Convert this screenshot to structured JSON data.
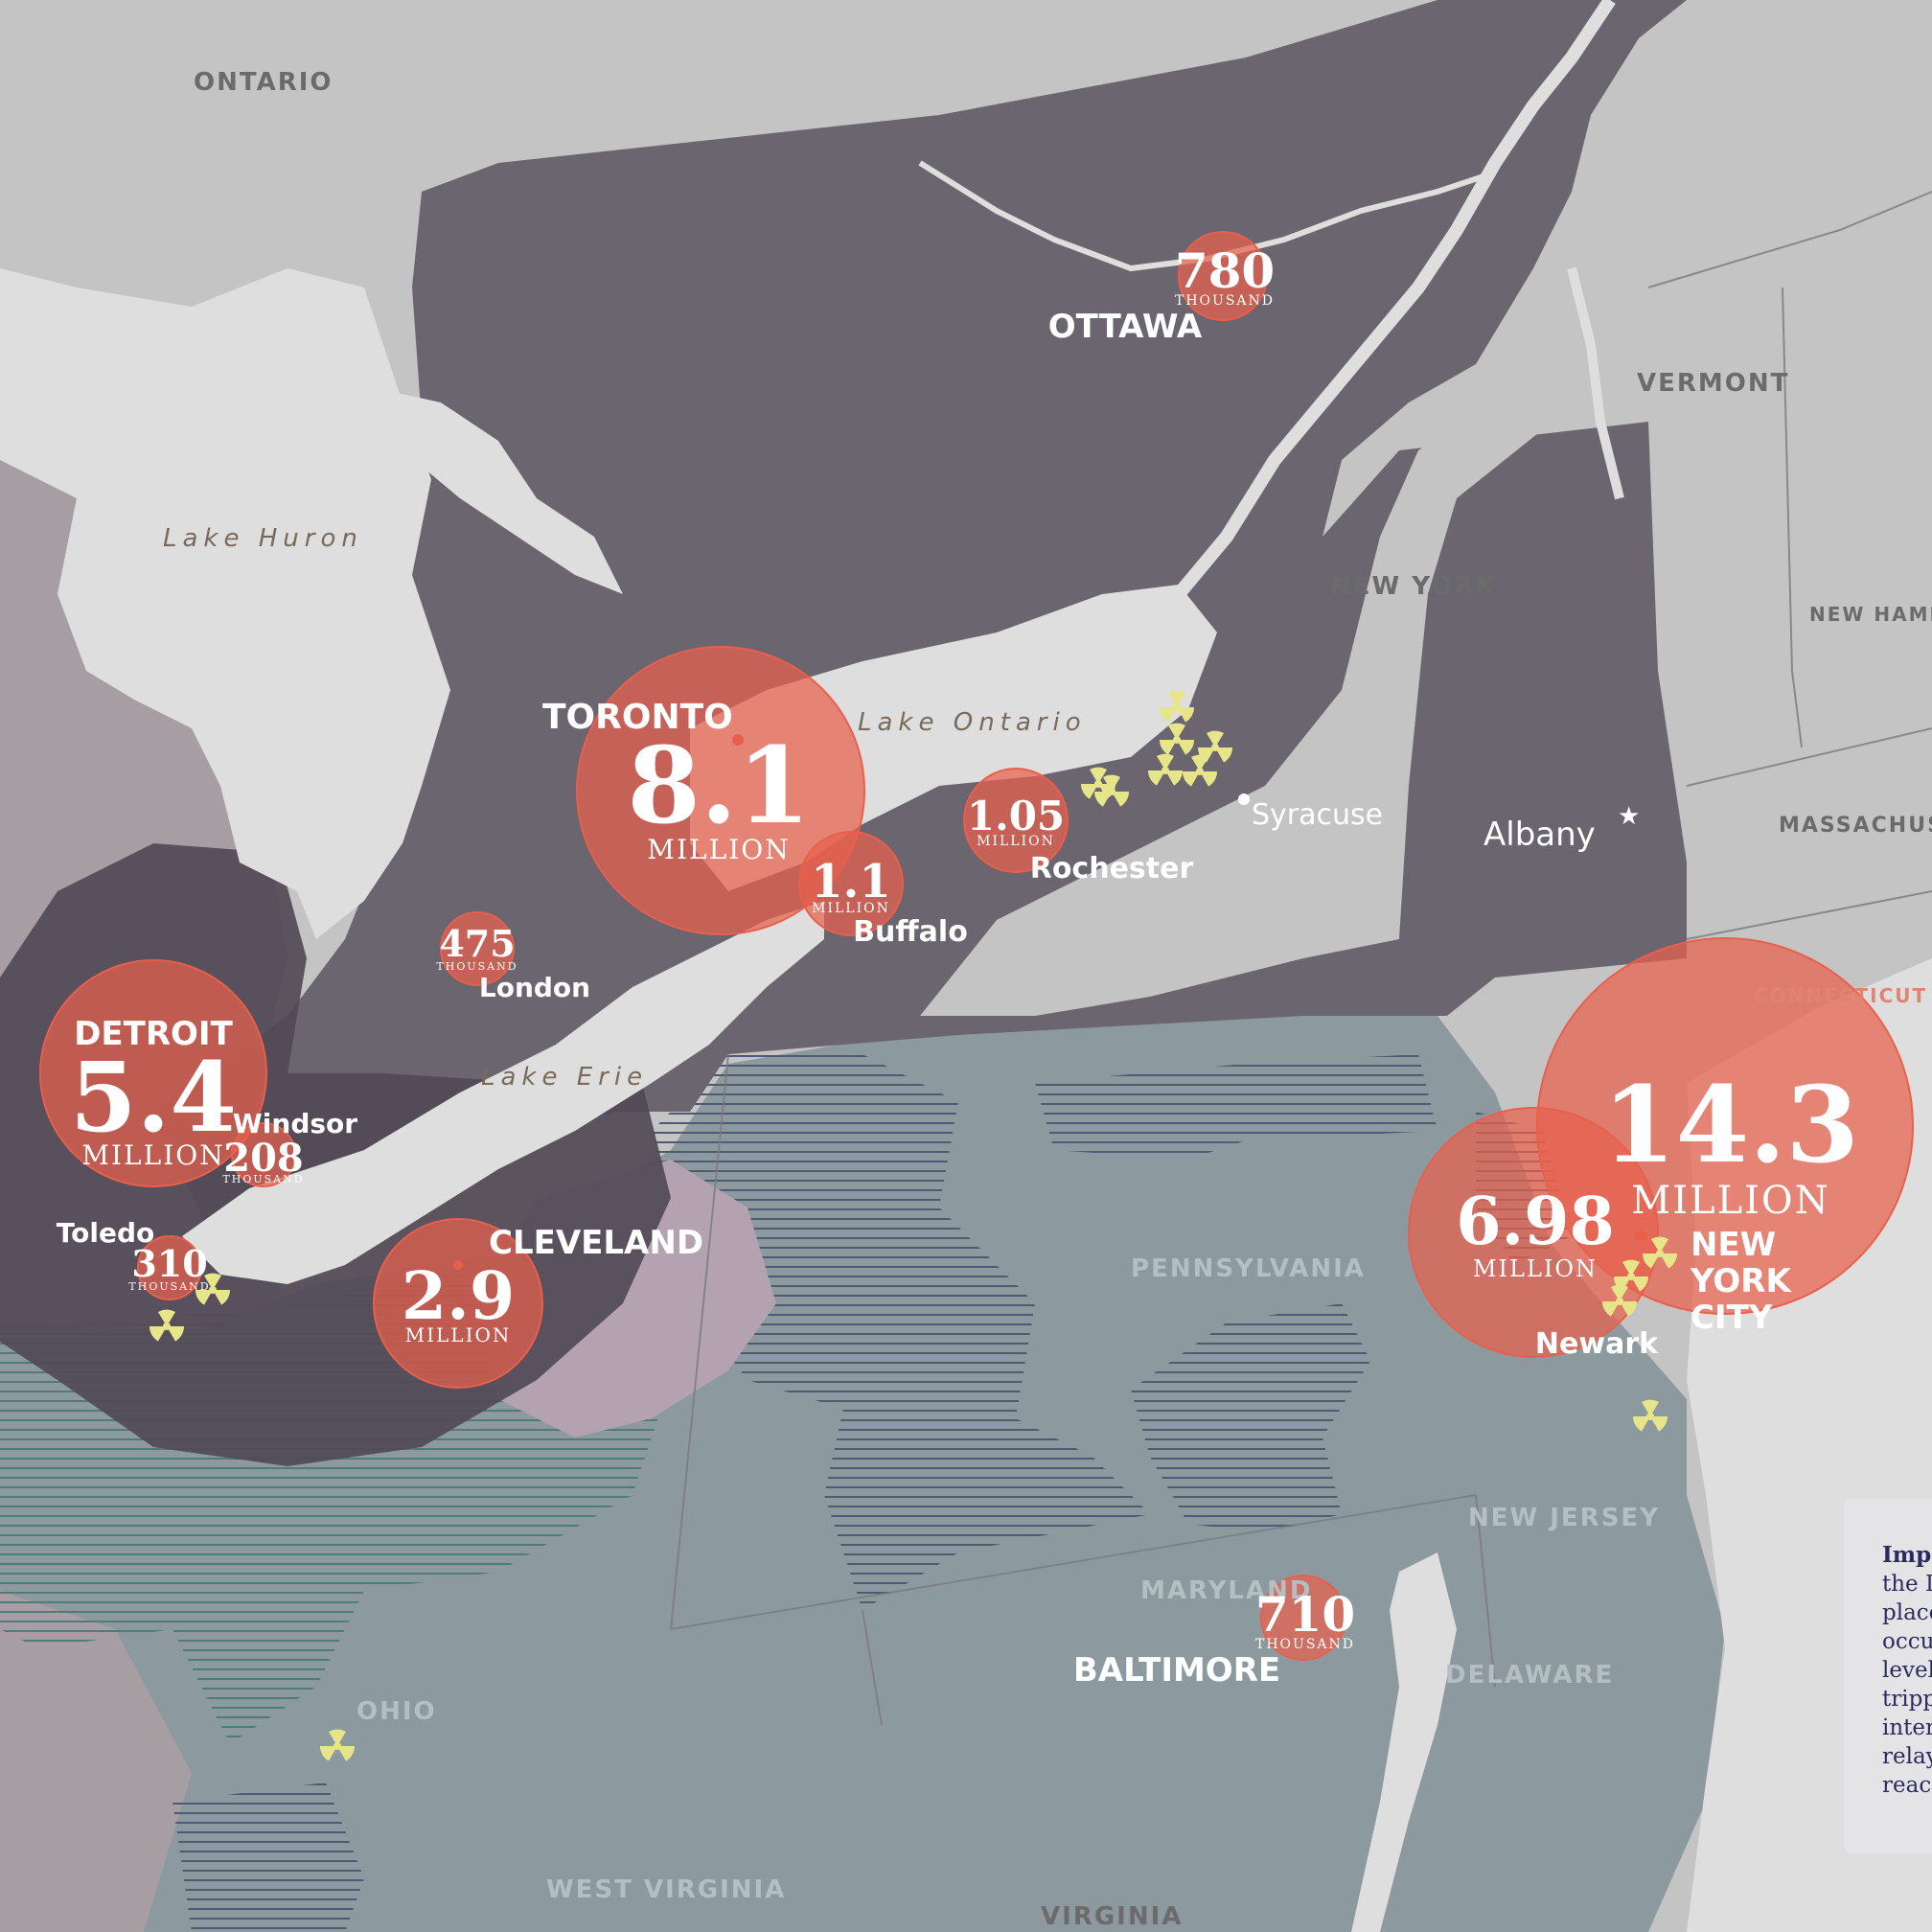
{
  "colors": {
    "land": "#c4c4c4",
    "lake": "#dedede",
    "blackout": "#6b6570",
    "red_bubble": "#e8604c",
    "ohio_outage": "#8c9aa0",
    "michigan_outage": "#a79ea4",
    "nuclear": "#e7e58a"
  },
  "regions": {
    "ontario": "ONTARIO",
    "vermont": "VERMONT",
    "new_york": "NEW YORK",
    "new_hampshire": "NEW HAMP",
    "massachusetts": "MASSACHUS",
    "connecticut": "CONNECTICUT",
    "pennsylvania": "PENNSYLVANIA",
    "new_jersey": "NEW JERSEY",
    "maryland": "MARYLAND",
    "delaware": "DELAWARE",
    "ohio": "OHIO",
    "west_virginia": "WEST VIRGINIA",
    "virginia": "VIRGINIA"
  },
  "lakes": {
    "huron": "Lake Huron",
    "ontario": "Lake Ontario",
    "erie": "Lake Erie"
  },
  "metros": {
    "toronto": {
      "name": "TORONTO",
      "value": "8.1",
      "unit": "MILLION"
    },
    "detroit": {
      "name": "DETROIT",
      "value": "5.4",
      "unit": "MILLION"
    },
    "cleveland": {
      "name": "CLEVELAND",
      "value": "2.9",
      "unit": "MILLION"
    },
    "nyc": {
      "name_line1": "NEW",
      "name_line2": "YORK",
      "name_line3": "CITY",
      "value": "14.3",
      "unit": "MILLION"
    },
    "newark": {
      "name": "Newark",
      "value": "6.98",
      "unit": "MILLION"
    },
    "ottawa": {
      "name": "OTTAWA",
      "value": "780",
      "unit": "THOUSAND"
    },
    "buffalo": {
      "name": "Buffalo",
      "value": "1.1",
      "unit": "MILLION"
    },
    "rochester": {
      "name": "Rochester",
      "value": "1.05",
      "unit": "MILLION"
    },
    "london": {
      "name": "London",
      "value": "475",
      "unit": "THOUSAND"
    },
    "windsor": {
      "name": "Windsor",
      "value": "208",
      "unit": "THOUSAND"
    },
    "toledo": {
      "name": "Toledo",
      "value": "310",
      "unit": "THOUSAND"
    },
    "baltimore": {
      "name": "BALTIMORE",
      "value": "710",
      "unit": "THOUSAND"
    }
  },
  "cities": {
    "syracuse": "Syracuse",
    "albany": "Albany"
  },
  "note": {
    "lines": [
      "Imp",
      "the I",
      "place",
      "occu",
      "level",
      "tripp",
      "inter",
      "relay",
      "react"
    ]
  }
}
